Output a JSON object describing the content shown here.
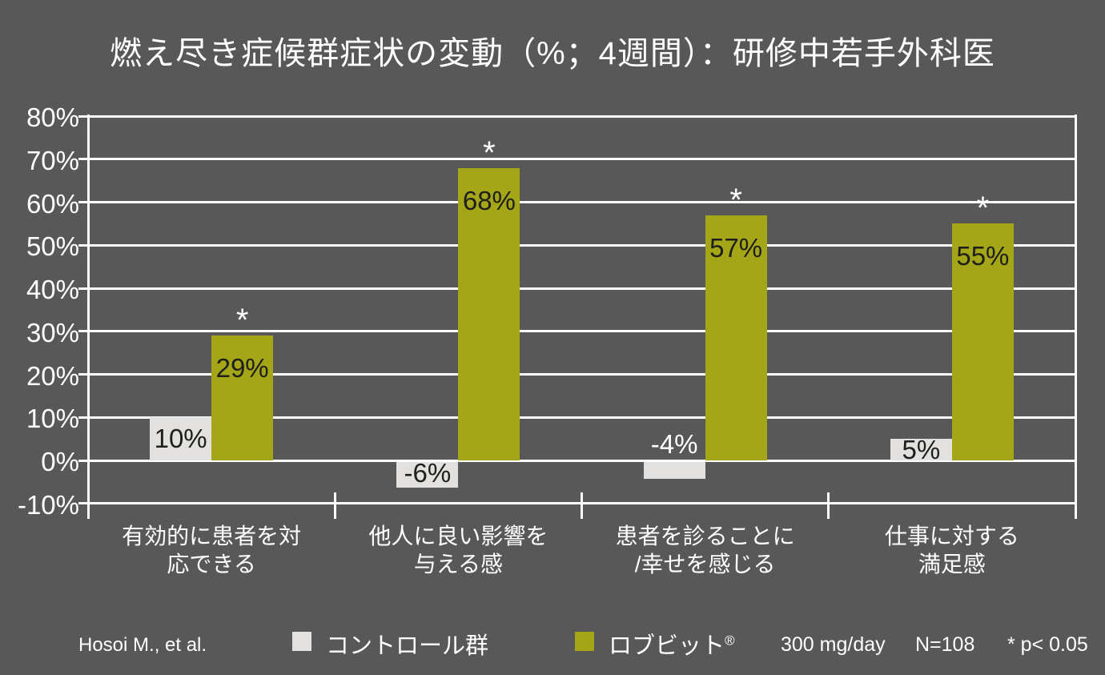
{
  "title": "燃え尽き症候群症状の変動（%；4週間）：研修中若手外科医",
  "chart_data": {
    "type": "bar",
    "title": "燃え尽き症候群症状の変動（%；4週間）：研修中若手外科医",
    "categories": [
      [
        "有効的に患者を対",
        "応できる"
      ],
      [
        "他人に良い影響を",
        "与える感"
      ],
      [
        "患者を診ることに",
        "/幸せを感じる"
      ],
      [
        "仕事に対する",
        "満足感"
      ]
    ],
    "series": [
      {
        "name": "コントロール群",
        "color": "#e3e1e0",
        "values": [
          10,
          -6,
          -4,
          5
        ],
        "labels": [
          "10%",
          "-6%",
          "-4%",
          "5%"
        ],
        "label_inside": [
          true,
          true,
          false,
          true
        ]
      },
      {
        "name": "ロブビット®",
        "color": "#a4a617",
        "values": [
          29,
          68,
          57,
          55
        ],
        "labels": [
          "29%",
          "68%",
          "57%",
          "55%"
        ],
        "significant": [
          true,
          true,
          true,
          true
        ]
      }
    ],
    "significance_marker": "*",
    "y_axis": {
      "min": -10,
      "max": 80,
      "step": 10,
      "unit": "%"
    },
    "ylim": [
      -10,
      80
    ],
    "grid": true,
    "legend_position": "bottom"
  },
  "footer": {
    "attribution": "Hosoi M., et al.",
    "legend": [
      {
        "label": "コントロール群",
        "color": "#e3e1e0"
      },
      {
        "label": "ロブビット",
        "reg": "®",
        "color": "#a4a617"
      }
    ],
    "dose": "300 mg/day",
    "sample": "N=108",
    "significance": "* p< 0.05"
  },
  "colors": {
    "background": "#595858",
    "text": "#ffffff",
    "grid": "#fdfdfd",
    "bar_value_text": "#1e1e1c"
  }
}
